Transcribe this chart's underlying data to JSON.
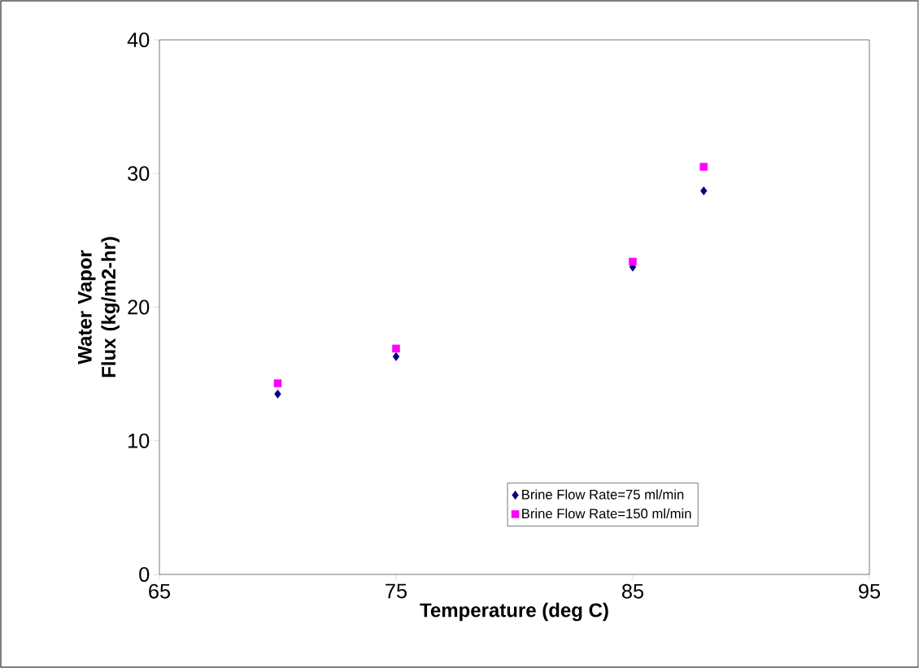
{
  "chart_data": {
    "type": "scatter",
    "xlabel": "Temperature (deg C)",
    "ylabel": "Water Vapor Flux (kg/m2-hr)",
    "x": [
      70,
      75,
      85,
      88
    ],
    "series": [
      {
        "name": "Brine Flow Rate=75 ml/min",
        "color": "#000080",
        "marker": "diamond",
        "values": [
          13.5,
          16.3,
          23.0,
          28.7
        ]
      },
      {
        "name": "Brine Flow Rate=150 ml/min",
        "color": "#ff00ff",
        "marker": "square",
        "values": [
          14.3,
          16.9,
          23.4,
          30.5
        ]
      }
    ],
    "xlim": [
      65,
      95
    ],
    "xticks": [
      65,
      75,
      85,
      95
    ],
    "ylim": [
      0,
      40
    ],
    "yticks": [
      0,
      10,
      20,
      30,
      40
    ],
    "grid": false,
    "legend": "bottom right"
  }
}
